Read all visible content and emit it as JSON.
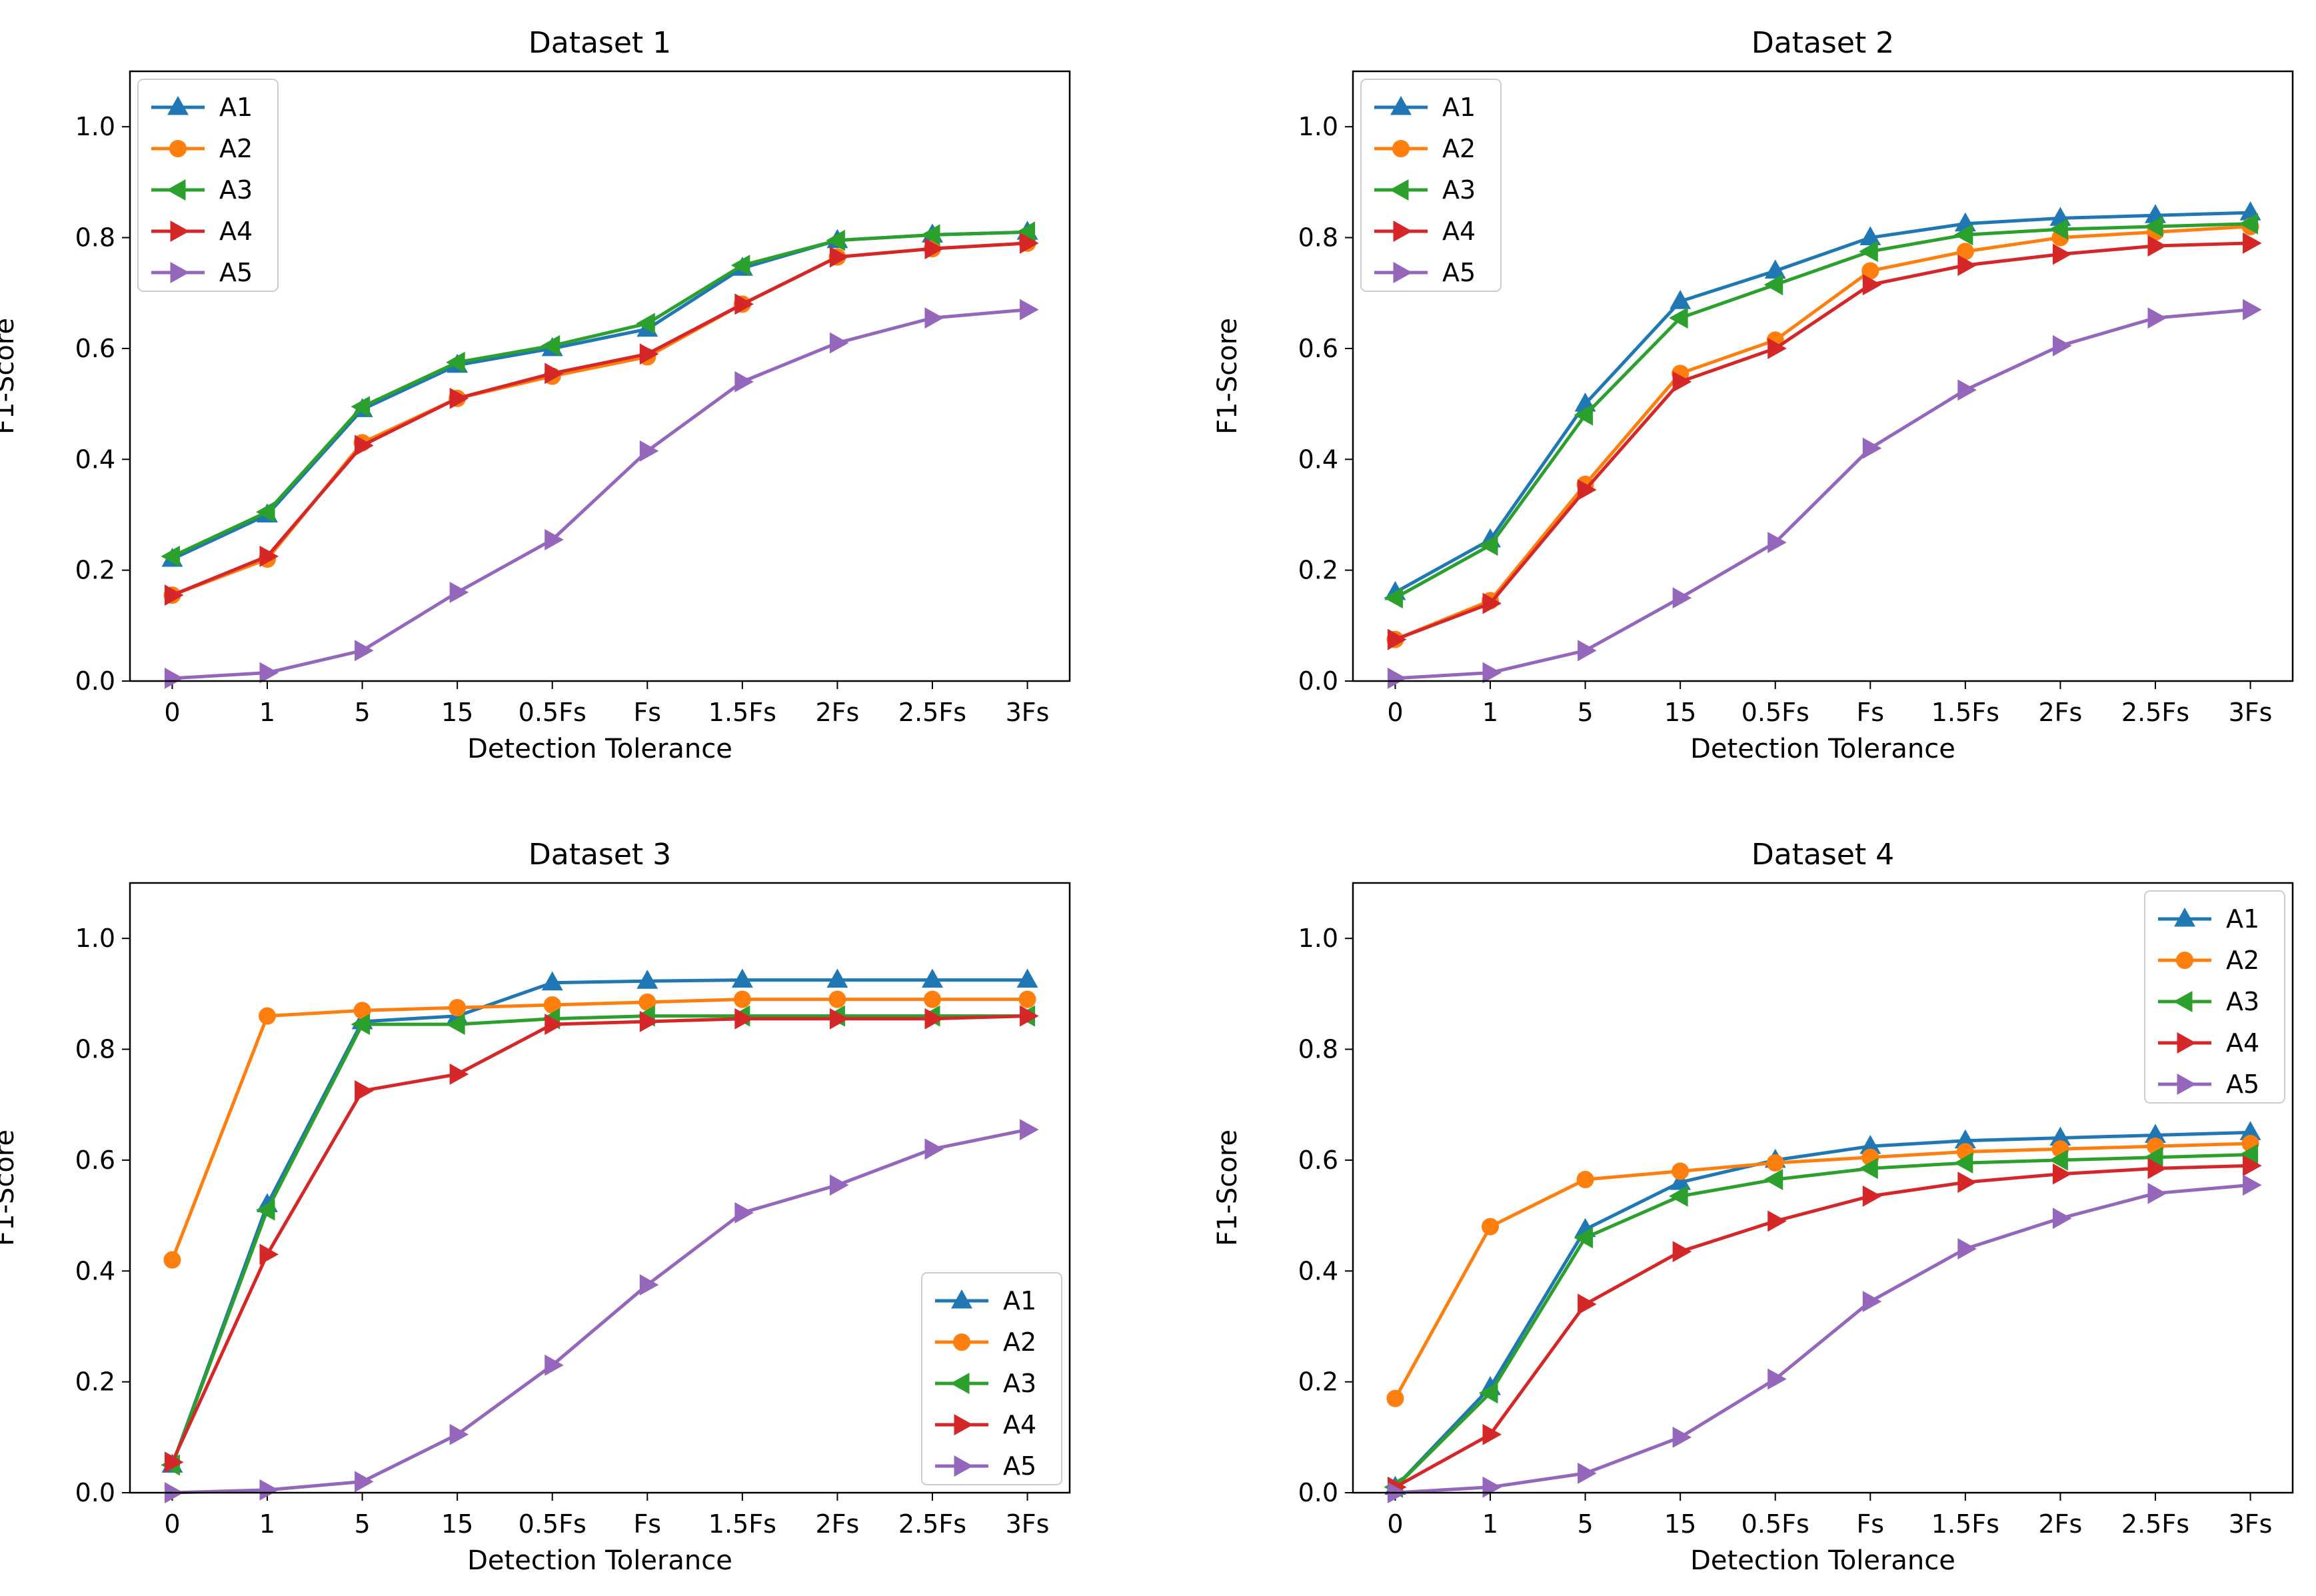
{
  "chart_data": [
    {
      "type": "line",
      "title": "Dataset 1",
      "xlabel": "Detection Tolerance",
      "ylabel": "F1-Score",
      "categories": [
        "0",
        "1",
        "5",
        "15",
        "0.5Fs",
        "Fs",
        "1.5Fs",
        "2Fs",
        "2.5Fs",
        "3Fs"
      ],
      "ylim": [
        0,
        1.1
      ],
      "yticks": [
        "0.0",
        "0.2",
        "0.4",
        "0.6",
        "0.8",
        "1.0"
      ],
      "legend": "top-left",
      "series": [
        {
          "name": "A1",
          "values": [
            0.22,
            0.3,
            0.49,
            0.57,
            0.6,
            0.635,
            0.745,
            0.795,
            0.805,
            0.81
          ]
        },
        {
          "name": "A2",
          "values": [
            0.155,
            0.22,
            0.43,
            0.51,
            0.55,
            0.585,
            0.68,
            0.765,
            0.78,
            0.79
          ]
        },
        {
          "name": "A3",
          "values": [
            0.225,
            0.305,
            0.495,
            0.575,
            0.605,
            0.645,
            0.75,
            0.795,
            0.805,
            0.81
          ]
        },
        {
          "name": "A4",
          "values": [
            0.155,
            0.225,
            0.425,
            0.51,
            0.555,
            0.59,
            0.68,
            0.765,
            0.78,
            0.79
          ]
        },
        {
          "name": "A5",
          "values": [
            0.005,
            0.015,
            0.055,
            0.16,
            0.255,
            0.415,
            0.54,
            0.61,
            0.655,
            0.67
          ]
        }
      ]
    },
    {
      "type": "line",
      "title": "Dataset 2",
      "xlabel": "Detection Tolerance",
      "ylabel": "F1-Score",
      "categories": [
        "0",
        "1",
        "5",
        "15",
        "0.5Fs",
        "Fs",
        "1.5Fs",
        "2Fs",
        "2.5Fs",
        "3Fs"
      ],
      "ylim": [
        0,
        1.1
      ],
      "yticks": [
        "0.0",
        "0.2",
        "0.4",
        "0.6",
        "0.8",
        "1.0"
      ],
      "legend": "top-left",
      "series": [
        {
          "name": "A1",
          "values": [
            0.16,
            0.255,
            0.5,
            0.685,
            0.74,
            0.8,
            0.825,
            0.835,
            0.84,
            0.845
          ]
        },
        {
          "name": "A2",
          "values": [
            0.075,
            0.145,
            0.355,
            0.555,
            0.615,
            0.74,
            0.775,
            0.8,
            0.81,
            0.82
          ]
        },
        {
          "name": "A3",
          "values": [
            0.15,
            0.245,
            0.48,
            0.655,
            0.715,
            0.775,
            0.805,
            0.815,
            0.82,
            0.825
          ]
        },
        {
          "name": "A4",
          "values": [
            0.075,
            0.14,
            0.345,
            0.54,
            0.6,
            0.715,
            0.75,
            0.77,
            0.785,
            0.79
          ]
        },
        {
          "name": "A5",
          "values": [
            0.005,
            0.015,
            0.055,
            0.15,
            0.25,
            0.42,
            0.525,
            0.605,
            0.655,
            0.67
          ]
        }
      ]
    },
    {
      "type": "line",
      "title": "Dataset 3",
      "xlabel": "Detection Tolerance",
      "ylabel": "F1-Score",
      "categories": [
        "0",
        "1",
        "5",
        "15",
        "0.5Fs",
        "Fs",
        "1.5Fs",
        "2Fs",
        "2.5Fs",
        "3Fs"
      ],
      "ylim": [
        0,
        1.1
      ],
      "yticks": [
        "0.0",
        "0.2",
        "0.4",
        "0.6",
        "0.8",
        "1.0"
      ],
      "legend": "bottom-right",
      "series": [
        {
          "name": "A1",
          "values": [
            0.05,
            0.52,
            0.85,
            0.86,
            0.92,
            0.923,
            0.925,
            0.925,
            0.925,
            0.925
          ]
        },
        {
          "name": "A2",
          "values": [
            0.42,
            0.86,
            0.87,
            0.875,
            0.88,
            0.885,
            0.89,
            0.89,
            0.89,
            0.89
          ]
        },
        {
          "name": "A3",
          "values": [
            0.05,
            0.51,
            0.845,
            0.845,
            0.855,
            0.86,
            0.86,
            0.86,
            0.86,
            0.86
          ]
        },
        {
          "name": "A4",
          "values": [
            0.055,
            0.43,
            0.725,
            0.755,
            0.845,
            0.85,
            0.855,
            0.855,
            0.855,
            0.86
          ]
        },
        {
          "name": "A5",
          "values": [
            0.0,
            0.005,
            0.02,
            0.105,
            0.23,
            0.375,
            0.505,
            0.555,
            0.62,
            0.655
          ]
        }
      ]
    },
    {
      "type": "line",
      "title": "Dataset 4",
      "xlabel": "Detection Tolerance",
      "ylabel": "F1-Score",
      "categories": [
        "0",
        "1",
        "5",
        "15",
        "0.5Fs",
        "Fs",
        "1.5Fs",
        "2Fs",
        "2.5Fs",
        "3Fs"
      ],
      "ylim": [
        0,
        1.1
      ],
      "yticks": [
        "0.0",
        "0.2",
        "0.4",
        "0.6",
        "0.8",
        "1.0"
      ],
      "legend": "top-right",
      "series": [
        {
          "name": "A1",
          "values": [
            0.01,
            0.19,
            0.475,
            0.56,
            0.6,
            0.625,
            0.635,
            0.64,
            0.645,
            0.65
          ]
        },
        {
          "name": "A2",
          "values": [
            0.17,
            0.48,
            0.565,
            0.58,
            0.595,
            0.605,
            0.615,
            0.62,
            0.625,
            0.63
          ]
        },
        {
          "name": "A3",
          "values": [
            0.01,
            0.18,
            0.46,
            0.535,
            0.565,
            0.585,
            0.595,
            0.6,
            0.605,
            0.61
          ]
        },
        {
          "name": "A4",
          "values": [
            0.01,
            0.105,
            0.34,
            0.435,
            0.49,
            0.535,
            0.56,
            0.575,
            0.585,
            0.59
          ]
        },
        {
          "name": "A5",
          "values": [
            0.0,
            0.01,
            0.035,
            0.1,
            0.205,
            0.345,
            0.44,
            0.495,
            0.54,
            0.555
          ]
        }
      ]
    }
  ],
  "series_colors": {
    "A1": "#1f77b4",
    "A2": "#ff7f0e",
    "A3": "#2ca02c",
    "A4": "#d62728",
    "A5": "#9467bd"
  },
  "series_markers": {
    "A1": "triangle-up",
    "A2": "circle",
    "A3": "triangle-left",
    "A4": "triangle-right",
    "A5": "triangle-right"
  }
}
